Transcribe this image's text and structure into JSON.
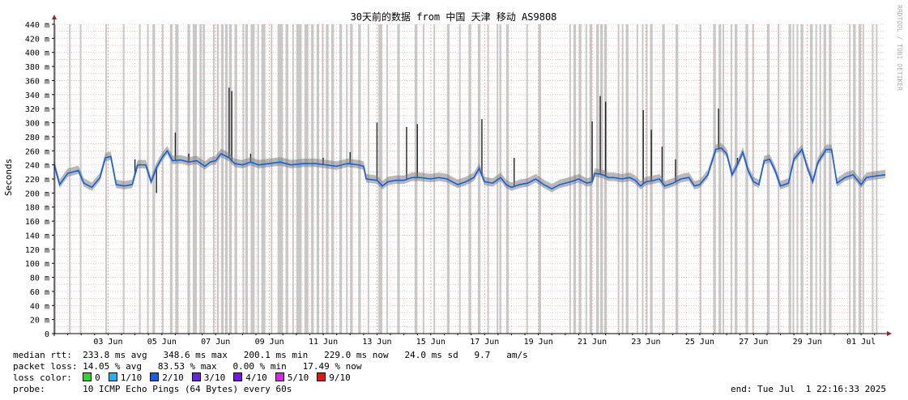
{
  "chart_data": {
    "type": "line",
    "title": "30天前的数据 from 中国 天津 移动 AS9808",
    "ylabel": "Seconds",
    "xlabel": "",
    "watermark": "RRDTOOL / TOBI OETIKER",
    "ylim": [
      0,
      440
    ],
    "yunit": "ms",
    "yticks": [
      "0",
      "20 m",
      "40 m",
      "60 m",
      "80 m",
      "100 m",
      "120 m",
      "140 m",
      "160 m",
      "180 m",
      "200 m",
      "220 m",
      "240 m",
      "260 m",
      "280 m",
      "300 m",
      "320 m",
      "340 m",
      "360 m",
      "380 m",
      "400 m",
      "420 m",
      "440 m"
    ],
    "xrange_days": [
      1.0,
      31.9
    ],
    "xticks": [
      {
        "day": 3,
        "label": "03 Jun"
      },
      {
        "day": 5,
        "label": "05 Jun"
      },
      {
        "day": 7,
        "label": "07 Jun"
      },
      {
        "day": 9,
        "label": "09 Jun"
      },
      {
        "day": 11,
        "label": "11 Jun"
      },
      {
        "day": 13,
        "label": "13 Jun"
      },
      {
        "day": 15,
        "label": "15 Jun"
      },
      {
        "day": 17,
        "label": "17 Jun"
      },
      {
        "day": 19,
        "label": "19 Jun"
      },
      {
        "day": 21,
        "label": "21 Jun"
      },
      {
        "day": 23,
        "label": "23 Jun"
      },
      {
        "day": 25,
        "label": "25 Jun"
      },
      {
        "day": 27,
        "label": "27 Jun"
      },
      {
        "day": 29,
        "label": "29 Jun"
      },
      {
        "day": 31,
        "label": "01 Jul"
      }
    ],
    "grid": true,
    "series": [
      {
        "name": "median rtt",
        "points": [
          [
            1.0,
            240
          ],
          [
            1.2,
            212
          ],
          [
            1.5,
            228
          ],
          [
            1.9,
            232
          ],
          [
            2.1,
            214
          ],
          [
            2.4,
            208
          ],
          [
            2.7,
            222
          ],
          [
            2.9,
            250
          ],
          [
            3.1,
            252
          ],
          [
            3.3,
            212
          ],
          [
            3.6,
            210
          ],
          [
            3.9,
            212
          ],
          [
            4.1,
            240
          ],
          [
            4.4,
            240
          ],
          [
            4.6,
            216
          ],
          [
            4.8,
            236
          ],
          [
            5.0,
            250
          ],
          [
            5.2,
            260
          ],
          [
            5.4,
            246
          ],
          [
            5.7,
            247
          ],
          [
            6.0,
            244
          ],
          [
            6.3,
            246
          ],
          [
            6.6,
            238
          ],
          [
            6.8,
            244
          ],
          [
            7.0,
            246
          ],
          [
            7.2,
            256
          ],
          [
            7.5,
            250
          ],
          [
            7.7,
            242
          ],
          [
            8.0,
            240
          ],
          [
            8.3,
            244
          ],
          [
            8.6,
            240
          ],
          [
            9.0,
            242
          ],
          [
            9.4,
            244
          ],
          [
            9.8,
            240
          ],
          [
            10.3,
            242
          ],
          [
            10.7,
            242
          ],
          [
            11.1,
            240
          ],
          [
            11.5,
            238
          ],
          [
            11.9,
            242
          ],
          [
            12.3,
            240
          ],
          [
            12.5,
            238
          ],
          [
            12.6,
            220
          ],
          [
            13.0,
            218
          ],
          [
            13.2,
            210
          ],
          [
            13.4,
            216
          ],
          [
            13.7,
            218
          ],
          [
            14.0,
            218
          ],
          [
            14.3,
            222
          ],
          [
            14.6,
            222
          ],
          [
            15.0,
            220
          ],
          [
            15.3,
            222
          ],
          [
            15.6,
            220
          ],
          [
            16.0,
            212
          ],
          [
            16.3,
            216
          ],
          [
            16.6,
            222
          ],
          [
            16.8,
            235
          ],
          [
            17.0,
            216
          ],
          [
            17.3,
            214
          ],
          [
            17.6,
            222
          ],
          [
            17.8,
            212
          ],
          [
            18.0,
            208
          ],
          [
            18.3,
            212
          ],
          [
            18.6,
            214
          ],
          [
            18.9,
            220
          ],
          [
            19.2,
            212
          ],
          [
            19.5,
            206
          ],
          [
            19.8,
            212
          ],
          [
            20.2,
            216
          ],
          [
            20.5,
            220
          ],
          [
            20.8,
            214
          ],
          [
            21.0,
            216
          ],
          [
            21.1,
            228
          ],
          [
            21.4,
            226
          ],
          [
            21.6,
            222
          ],
          [
            21.8,
            222
          ],
          [
            22.1,
            220
          ],
          [
            22.4,
            222
          ],
          [
            22.6,
            218
          ],
          [
            22.8,
            210
          ],
          [
            23.0,
            216
          ],
          [
            23.3,
            218
          ],
          [
            23.5,
            220
          ],
          [
            23.7,
            210
          ],
          [
            24.0,
            214
          ],
          [
            24.3,
            220
          ],
          [
            24.6,
            222
          ],
          [
            24.8,
            210
          ],
          [
            25.0,
            212
          ],
          [
            25.3,
            226
          ],
          [
            25.6,
            262
          ],
          [
            25.8,
            264
          ],
          [
            26.0,
            256
          ],
          [
            26.2,
            226
          ],
          [
            26.4,
            240
          ],
          [
            26.6,
            258
          ],
          [
            26.8,
            232
          ],
          [
            27.0,
            216
          ],
          [
            27.2,
            212
          ],
          [
            27.4,
            246
          ],
          [
            27.6,
            248
          ],
          [
            27.8,
            232
          ],
          [
            28.0,
            210
          ],
          [
            28.3,
            214
          ],
          [
            28.5,
            248
          ],
          [
            28.8,
            262
          ],
          [
            29.0,
            236
          ],
          [
            29.2,
            216
          ],
          [
            29.4,
            244
          ],
          [
            29.7,
            262
          ],
          [
            29.9,
            262
          ],
          [
            30.1,
            214
          ],
          [
            30.4,
            222
          ],
          [
            30.7,
            226
          ],
          [
            31.0,
            212
          ],
          [
            31.2,
            222
          ],
          [
            31.5,
            224
          ],
          [
            31.9,
            226
          ]
        ]
      }
    ],
    "spikes": [
      [
        4.0,
        248
      ],
      [
        4.8,
        200
      ],
      [
        5.5,
        286
      ],
      [
        6.0,
        256
      ],
      [
        7.5,
        350
      ],
      [
        7.6,
        345
      ],
      [
        8.3,
        256
      ],
      [
        11.0,
        250
      ],
      [
        12.0,
        258
      ],
      [
        13.0,
        300
      ],
      [
        14.1,
        294
      ],
      [
        14.5,
        298
      ],
      [
        16.9,
        305
      ],
      [
        18.1,
        250
      ],
      [
        21.0,
        302
      ],
      [
        21.3,
        338
      ],
      [
        21.5,
        330
      ],
      [
        22.9,
        318
      ],
      [
        23.2,
        290
      ],
      [
        23.6,
        266
      ],
      [
        24.1,
        248
      ],
      [
        25.7,
        320
      ],
      [
        26.4,
        250
      ]
    ],
    "loss_bands": [
      [
        1.0,
        1.05
      ],
      [
        1.55,
        1.6
      ],
      [
        1.95,
        1.98
      ],
      [
        2.9,
        2.95
      ],
      [
        3.55,
        3.6
      ],
      [
        4.15,
        4.2
      ],
      [
        4.45,
        4.48
      ],
      [
        4.65,
        4.75
      ],
      [
        5.0,
        5.05
      ],
      [
        5.3,
        5.4
      ],
      [
        5.5,
        5.62
      ],
      [
        5.95,
        6.05
      ],
      [
        6.15,
        6.3
      ],
      [
        6.4,
        6.48
      ],
      [
        6.52,
        6.6
      ],
      [
        6.9,
        6.95
      ],
      [
        7.05,
        7.12
      ],
      [
        7.2,
        7.3
      ],
      [
        7.35,
        7.45
      ],
      [
        7.5,
        7.6
      ],
      [
        7.7,
        7.8
      ],
      [
        8.0,
        8.05
      ],
      [
        8.1,
        8.2
      ],
      [
        8.3,
        8.45
      ],
      [
        8.55,
        8.6
      ],
      [
        8.7,
        8.85
      ],
      [
        9.05,
        9.1
      ],
      [
        9.3,
        9.5
      ],
      [
        9.6,
        9.7
      ],
      [
        9.85,
        9.9
      ],
      [
        10.0,
        10.2
      ],
      [
        10.3,
        10.45
      ],
      [
        10.55,
        10.65
      ],
      [
        10.75,
        10.85
      ],
      [
        10.95,
        11.0
      ],
      [
        11.1,
        11.2
      ],
      [
        11.3,
        11.4
      ],
      [
        11.6,
        11.7
      ],
      [
        11.85,
        11.9
      ],
      [
        12.0,
        12.1
      ],
      [
        12.3,
        12.4
      ],
      [
        12.65,
        12.7
      ],
      [
        13.05,
        13.2
      ],
      [
        13.35,
        13.4
      ],
      [
        13.75,
        13.85
      ],
      [
        14.4,
        14.5
      ],
      [
        14.7,
        14.75
      ],
      [
        15.1,
        15.15
      ],
      [
        15.6,
        15.7
      ],
      [
        16.05,
        16.1
      ],
      [
        16.4,
        16.5
      ],
      [
        16.75,
        16.85
      ],
      [
        17.1,
        17.15
      ],
      [
        17.45,
        17.5
      ],
      [
        17.55,
        17.62
      ],
      [
        17.8,
        17.9
      ],
      [
        18.55,
        18.6
      ],
      [
        19.0,
        19.1
      ],
      [
        20.15,
        20.2
      ],
      [
        20.3,
        20.4
      ],
      [
        20.5,
        20.6
      ],
      [
        20.75,
        20.8
      ],
      [
        20.9,
        21.0
      ],
      [
        21.15,
        21.25
      ],
      [
        21.3,
        21.4
      ],
      [
        21.45,
        21.55
      ],
      [
        21.95,
        22.0
      ],
      [
        22.1,
        22.15
      ],
      [
        22.25,
        22.35
      ],
      [
        22.65,
        22.7
      ],
      [
        22.85,
        22.9
      ],
      [
        23.0,
        23.05
      ],
      [
        23.15,
        23.25
      ],
      [
        23.6,
        23.7
      ],
      [
        24.1,
        24.2
      ],
      [
        25.0,
        25.05
      ],
      [
        25.5,
        25.6
      ],
      [
        25.7,
        25.8
      ],
      [
        25.85,
        25.9
      ],
      [
        26.15,
        26.2
      ],
      [
        26.3,
        26.4
      ],
      [
        26.7,
        26.8
      ],
      [
        26.95,
        27.0
      ],
      [
        27.5,
        27.6
      ],
      [
        27.9,
        27.95
      ],
      [
        28.3,
        28.4
      ],
      [
        28.45,
        28.5
      ],
      [
        28.6,
        28.65
      ],
      [
        28.75,
        28.85
      ],
      [
        29.1,
        29.2
      ],
      [
        29.3,
        29.35
      ],
      [
        29.45,
        29.5
      ],
      [
        29.6,
        29.7
      ],
      [
        29.8,
        29.9
      ],
      [
        30.55,
        30.6
      ],
      [
        30.7,
        30.8
      ],
      [
        30.9,
        31.0
      ],
      [
        31.05,
        31.1
      ],
      [
        31.4,
        31.45
      ],
      [
        31.55,
        31.6
      ]
    ]
  },
  "colors": {
    "grid": "#e8a0a0",
    "loss_band": "#c8c8c8",
    "median_line": "#1060e0",
    "jitter": "#808080",
    "spike": "#202020",
    "axis_arrow": "#a02020"
  },
  "stats": {
    "median_label": "median rtt:",
    "median_values": "233.8 ms avg   348.6 ms max   200.1 ms min   229.0 ms now   24.0 ms sd   9.7   am/s",
    "loss_label": "packet loss:",
    "loss_values": "14.05 % avg   83.53 % max   0.00 % min   17.49 % now",
    "loss_color_label": "loss color:",
    "loss_colors": [
      {
        "label": "0",
        "color": "#22dd22"
      },
      {
        "label": "1/10",
        "color": "#11bbee"
      },
      {
        "label": "2/10",
        "color": "#1060e0"
      },
      {
        "label": "3/10",
        "color": "#6622ee"
      },
      {
        "label": "4/10",
        "color": "#7711ee"
      },
      {
        "label": "5/10",
        "color": "#dd22ee"
      },
      {
        "label": "9/10",
        "color": "#ee1111"
      }
    ],
    "probe_label": "probe:",
    "probe_value": "10 ICMP Echo Pings (64 Bytes) every 60s",
    "end_label": "end: Tue Jul  1 22:16:33 2025"
  }
}
